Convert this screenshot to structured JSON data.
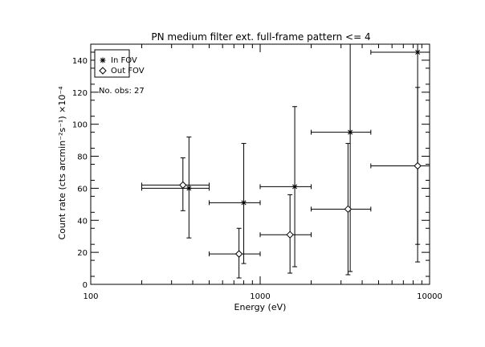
{
  "chart_data": {
    "type": "scatter",
    "title": "PN medium filter ext. full-frame pattern <= 4",
    "xlabel": "Energy (eV)",
    "ylabel": "Count rate (cts arcmin⁻²s⁻¹) ×10⁻⁴",
    "xscale": "log",
    "xlim": [
      100,
      10000
    ],
    "ylim": [
      0,
      150
    ],
    "x_ticks": [
      100,
      1000,
      10000
    ],
    "x_tick_labels": [
      "100",
      "1000",
      "10000"
    ],
    "y_ticks": [
      0,
      20,
      40,
      60,
      80,
      100,
      120,
      140
    ],
    "y_tick_labels": [
      "0",
      "20",
      "40",
      "60",
      "80",
      "100",
      "120",
      "140"
    ],
    "legend": {
      "placement": "top-left",
      "entries": [
        {
          "symbol": "asterisk",
          "label": "In FOV"
        },
        {
          "symbol": "diamond",
          "label": "Out FOV"
        }
      ]
    },
    "annotation": "No. obs: 27",
    "series": [
      {
        "name": "In FOV",
        "marker": "asterisk",
        "points": [
          {
            "x": 380,
            "xlo": 200,
            "xhi": 500,
            "y": 60,
            "ylo": 29,
            "yhi": 92
          },
          {
            "x": 800,
            "xlo": 500,
            "xhi": 1000,
            "y": 51,
            "ylo": 13,
            "yhi": 88
          },
          {
            "x": 1600,
            "xlo": 1000,
            "xhi": 2000,
            "y": 61,
            "ylo": 11,
            "yhi": 111
          },
          {
            "x": 3400,
            "xlo": 2000,
            "xhi": 4500,
            "y": 95,
            "ylo": 8,
            "yhi": 150
          },
          {
            "x": 8500,
            "xlo": 4500,
            "xhi": 10000,
            "y": 145,
            "ylo": 25,
            "yhi": 150
          }
        ]
      },
      {
        "name": "Out FOV",
        "marker": "diamond",
        "points": [
          {
            "x": 350,
            "xlo": 200,
            "xhi": 500,
            "y": 62,
            "ylo": 46,
            "yhi": 79
          },
          {
            "x": 750,
            "xlo": 500,
            "xhi": 1000,
            "y": 19,
            "ylo": 4,
            "yhi": 35
          },
          {
            "x": 1500,
            "xlo": 1000,
            "xhi": 2000,
            "y": 31,
            "ylo": 7,
            "yhi": 56
          },
          {
            "x": 3300,
            "xlo": 2000,
            "xhi": 4500,
            "y": 47,
            "ylo": 6,
            "yhi": 88
          },
          {
            "x": 8500,
            "xlo": 4500,
            "xhi": 10000,
            "y": 74,
            "ylo": 14,
            "yhi": 123
          }
        ]
      }
    ]
  }
}
